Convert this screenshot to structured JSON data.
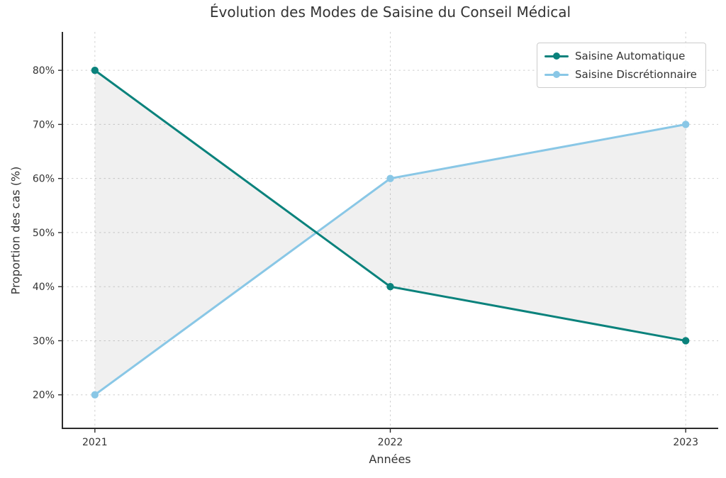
{
  "chart_data": {
    "type": "line",
    "title": "Évolution des Modes de Saisine du Conseil Médical",
    "xlabel": "Années",
    "ylabel": "Proportion des cas (%)",
    "x": [
      "2021",
      "2022",
      "2023"
    ],
    "series": [
      {
        "name": "Saisine Automatique",
        "values": [
          80,
          40,
          30
        ],
        "color": "#0a827c"
      },
      {
        "name": "Saisine Discrétionnaire",
        "values": [
          20,
          60,
          70
        ],
        "color": "#89c7e6"
      }
    ],
    "yticks": [
      20,
      30,
      40,
      50,
      60,
      70,
      80
    ],
    "ytick_labels": [
      "20%",
      "30%",
      "40%",
      "50%",
      "60%",
      "70%",
      "80%"
    ],
    "ylim": [
      13.8,
      87.1
    ],
    "grid": true,
    "grid_style": "dashed",
    "legend_position": "top-right",
    "fill_between": {
      "color": "#808080",
      "opacity": 0.12
    },
    "colors": {
      "grid": "#cfcfcf",
      "spine": "#2b2b2b",
      "text": "#333333",
      "background": "#ffffff"
    }
  }
}
